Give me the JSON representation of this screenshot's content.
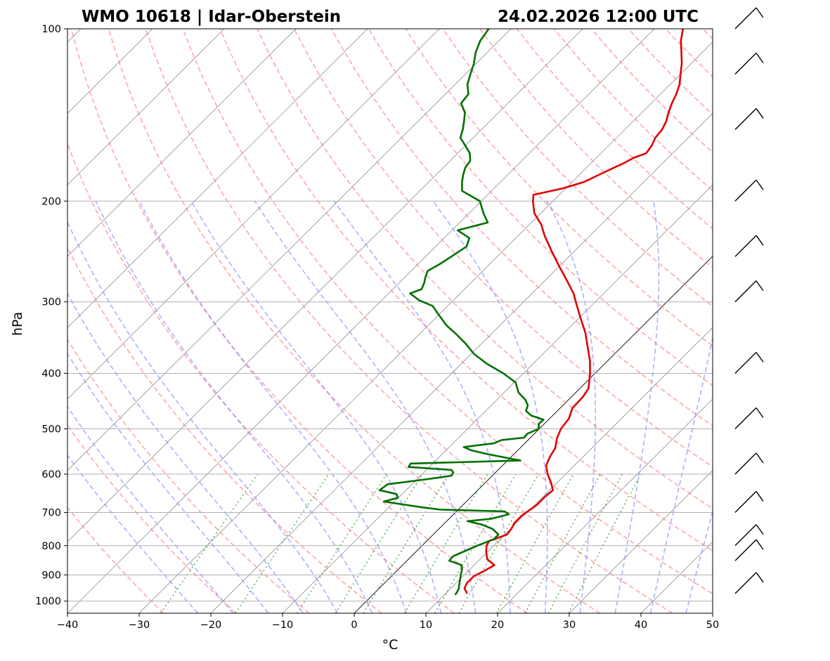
{
  "chart_data": {
    "type": "line",
    "chart_kind": "skew-T log-p sounding",
    "title_left": "WMO 10618 | Idar-Oberstein",
    "title_right": "24.02.2026 12:00 UTC",
    "xlabel": "°C",
    "ylabel": "hPa",
    "xlim": [
      -40,
      50
    ],
    "ylim_hpa": [
      1050,
      100
    ],
    "y_scale": "log",
    "x_ticks": [
      -40,
      -30,
      -20,
      -10,
      0,
      10,
      20,
      30,
      40,
      50
    ],
    "x_tick_labels": [
      "−40",
      "−30",
      "−20",
      "−10",
      "0",
      "10",
      "20",
      "30",
      "40",
      "50"
    ],
    "y_ticks": [
      1000,
      900,
      800,
      700,
      600,
      500,
      400,
      300,
      200,
      100
    ],
    "y_tick_labels": [
      "1000",
      "900",
      "800",
      "700",
      "600",
      "500",
      "400",
      "300",
      "200",
      "100"
    ],
    "grid": true,
    "colors": {
      "temperature": "#e00000",
      "dewpoint": "#007000",
      "dry_adiabats": "#ff8080",
      "moist_adiabats": "#8080ff",
      "mixing_ratio": "#2e9a2e",
      "isotherms": "#444444",
      "grid": "#b0b0b0"
    },
    "series": [
      {
        "key": "temperature",
        "points": [
          [
            970,
            13.0
          ],
          [
            950,
            11.9
          ],
          [
            930,
            11.5
          ],
          [
            905,
            11.5
          ],
          [
            880,
            12.4
          ],
          [
            865,
            12.8
          ],
          [
            845,
            11.0
          ],
          [
            820,
            9.8
          ],
          [
            800,
            9.0
          ],
          [
            785,
            8.7
          ],
          [
            765,
            10.3
          ],
          [
            748,
            10.1
          ],
          [
            730,
            9.7
          ],
          [
            708,
            9.7
          ],
          [
            680,
            10.3
          ],
          [
            655,
            10.3
          ],
          [
            640,
            10.5
          ],
          [
            620,
            9.1
          ],
          [
            600,
            7.5
          ],
          [
            580,
            6.1
          ],
          [
            560,
            5.4
          ],
          [
            540,
            4.9
          ],
          [
            520,
            3.8
          ],
          [
            500,
            3.0
          ],
          [
            480,
            2.7
          ],
          [
            460,
            1.7
          ],
          [
            440,
            1.6
          ],
          [
            425,
            1.2
          ],
          [
            400,
            -0.7
          ],
          [
            380,
            -2.5
          ],
          [
            360,
            -4.7
          ],
          [
            340,
            -7.0
          ],
          [
            320,
            -9.8
          ],
          [
            300,
            -12.7
          ],
          [
            290,
            -14.2
          ],
          [
            275,
            -17.0
          ],
          [
            260,
            -20.0
          ],
          [
            245,
            -23.1
          ],
          [
            230,
            -26.3
          ],
          [
            220,
            -28.3
          ],
          [
            210,
            -30.9
          ],
          [
            200,
            -32.8
          ],
          [
            195,
            -33.6
          ],
          [
            190,
            -30.4
          ],
          [
            185,
            -28.3
          ],
          [
            180,
            -27.3
          ],
          [
            175,
            -26.2
          ],
          [
            172,
            -25.5
          ],
          [
            168,
            -24.8
          ],
          [
            165,
            -23.7
          ],
          [
            160,
            -24.0
          ],
          [
            155,
            -24.6
          ],
          [
            150,
            -24.8
          ],
          [
            145,
            -25.4
          ],
          [
            140,
            -26.3
          ],
          [
            135,
            -27.1
          ],
          [
            130,
            -27.8
          ],
          [
            125,
            -28.7
          ],
          [
            120,
            -30.0
          ],
          [
            115,
            -31.3
          ],
          [
            110,
            -32.9
          ],
          [
            105,
            -34.6
          ],
          [
            100,
            -36.0
          ]
        ]
      },
      {
        "key": "dewpoint",
        "points": [
          [
            975,
            11.5
          ],
          [
            965,
            11.4
          ],
          [
            950,
            11.1
          ],
          [
            925,
            10.3
          ],
          [
            900,
            9.5
          ],
          [
            880,
            8.9
          ],
          [
            865,
            8.2
          ],
          [
            850,
            5.9
          ],
          [
            835,
            5.8
          ],
          [
            820,
            6.6
          ],
          [
            800,
            7.7
          ],
          [
            780,
            9.1
          ],
          [
            765,
            9.1
          ],
          [
            748,
            7.5
          ],
          [
            735,
            5.4
          ],
          [
            725,
            2.9
          ],
          [
            718,
            5.9
          ],
          [
            705,
            7.7
          ],
          [
            697,
            6.7
          ],
          [
            692,
            -2.5
          ],
          [
            685,
            -5.6
          ],
          [
            670,
            -11.5
          ],
          [
            660,
            -10.1
          ],
          [
            650,
            -10.8
          ],
          [
            640,
            -13.7
          ],
          [
            625,
            -13.4
          ],
          [
            612,
            -8.5
          ],
          [
            604,
            -5.7
          ],
          [
            596,
            -5.9
          ],
          [
            590,
            -6.5
          ],
          [
            583,
            -12.9
          ],
          [
            575,
            -13.1
          ],
          [
            568,
            1.8
          ],
          [
            560,
            -1.2
          ],
          [
            553,
            -3.9
          ],
          [
            545,
            -6.5
          ],
          [
            538,
            -8.0
          ],
          [
            530,
            -4.3
          ],
          [
            523,
            -3.7
          ],
          [
            518,
            -0.9
          ],
          [
            510,
            -1.0
          ],
          [
            500,
            -0.1
          ],
          [
            490,
            -0.8
          ],
          [
            482,
            -0.7
          ],
          [
            474,
            -3.0
          ],
          [
            465,
            -4.4
          ],
          [
            455,
            -4.9
          ],
          [
            445,
            -6.0
          ],
          [
            432,
            -8.0
          ],
          [
            415,
            -9.8
          ],
          [
            400,
            -12.8
          ],
          [
            385,
            -16.4
          ],
          [
            370,
            -19.6
          ],
          [
            355,
            -22.2
          ],
          [
            340,
            -25.2
          ],
          [
            330,
            -27.4
          ],
          [
            315,
            -30.2
          ],
          [
            305,
            -32.1
          ],
          [
            298,
            -34.8
          ],
          [
            290,
            -37.0
          ],
          [
            285,
            -36.0
          ],
          [
            278,
            -36.5
          ],
          [
            272,
            -37.1
          ],
          [
            265,
            -37.7
          ],
          [
            258,
            -37.0
          ],
          [
            250,
            -36.4
          ],
          [
            240,
            -35.7
          ],
          [
            232,
            -36.5
          ],
          [
            225,
            -39.2
          ],
          [
            218,
            -36.1
          ],
          [
            210,
            -38.0
          ],
          [
            200,
            -40.2
          ],
          [
            192,
            -44.1
          ],
          [
            185,
            -45.4
          ],
          [
            180,
            -46.2
          ],
          [
            175,
            -46.9
          ],
          [
            170,
            -47.2
          ],
          [
            165,
            -48.3
          ],
          [
            160,
            -50.0
          ],
          [
            155,
            -51.8
          ],
          [
            150,
            -52.6
          ],
          [
            145,
            -53.6
          ],
          [
            140,
            -54.7
          ],
          [
            135,
            -56.5
          ],
          [
            130,
            -56.8
          ],
          [
            125,
            -58.3
          ],
          [
            120,
            -59.3
          ],
          [
            115,
            -60.3
          ],
          [
            110,
            -61.6
          ],
          [
            105,
            -62.6
          ],
          [
            100,
            -63.1
          ]
        ]
      }
    ],
    "wind_barbs": {
      "x_position": "right of plot",
      "pressures_hpa": [
        970,
        850,
        800,
        700,
        600,
        500,
        400,
        300,
        250,
        200,
        150,
        120,
        100
      ]
    }
  }
}
